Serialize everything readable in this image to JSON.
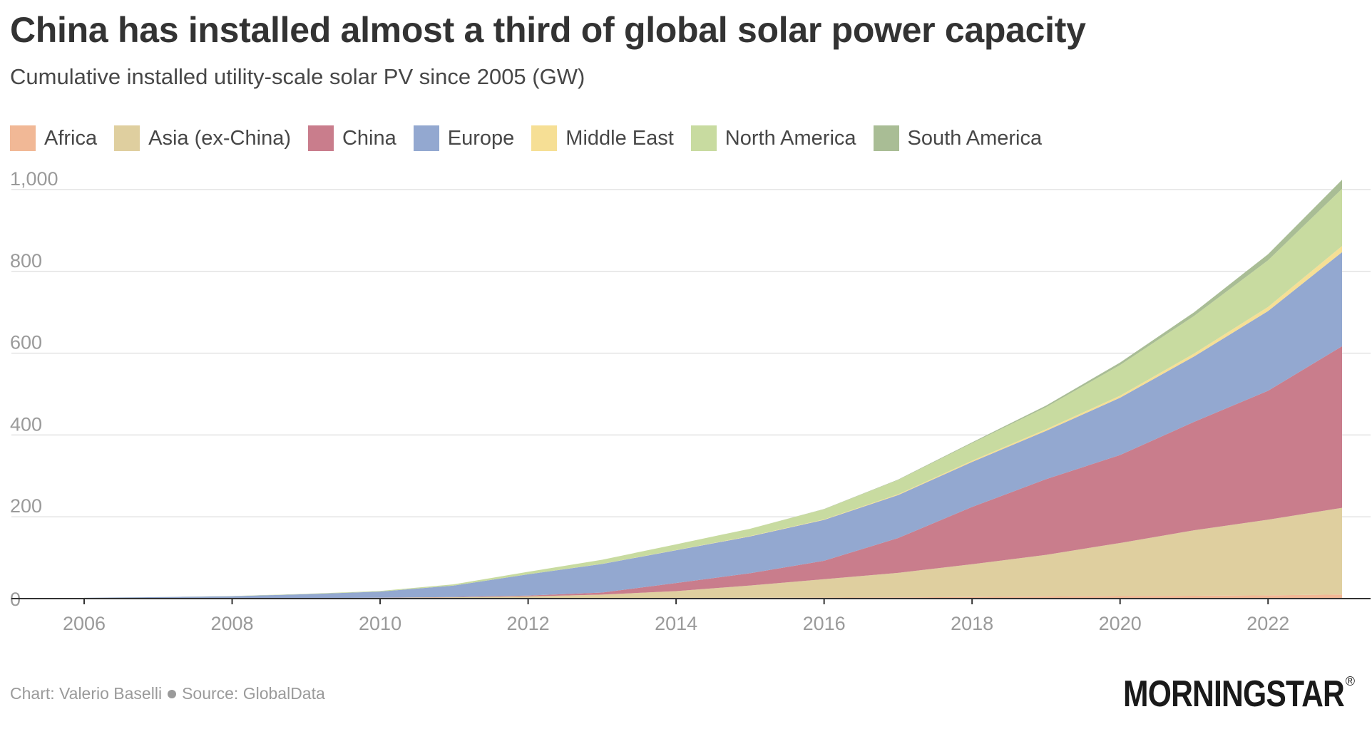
{
  "header": {
    "title": "China has installed almost a third of global solar power capacity",
    "subtitle": "Cumulative installed utility-scale solar PV since 2005 (GW)"
  },
  "footer": {
    "credit": "Chart: Valerio Baselli",
    "source": "Source: GlobalData",
    "logo_text": "MORNINGSTAR",
    "logo_mark": "®"
  },
  "legend": [
    {
      "label": "Africa",
      "color": "#f1b896"
    },
    {
      "label": "Asia (ex-China)",
      "color": "#dfcf9f"
    },
    {
      "label": "China",
      "color": "#c97d8c"
    },
    {
      "label": "Europe",
      "color": "#93a8d0"
    },
    {
      "label": "Middle East",
      "color": "#f6df95"
    },
    {
      "label": "North America",
      "color": "#c8dba0"
    },
    {
      "label": "South America",
      "color": "#a9bd95"
    }
  ],
  "chart_data": {
    "type": "area",
    "stacked": true,
    "title": "China has installed almost a third of global solar power capacity",
    "subtitle": "Cumulative installed utility-scale solar PV since 2005 (GW)",
    "x": [
      2006,
      2007,
      2008,
      2009,
      2010,
      2011,
      2012,
      2013,
      2014,
      2015,
      2016,
      2017,
      2018,
      2019,
      2020,
      2021,
      2022,
      2023
    ],
    "x_ticks": [
      2006,
      2008,
      2010,
      2012,
      2014,
      2016,
      2018,
      2020,
      2022
    ],
    "y_ticks": [
      0,
      200,
      400,
      600,
      800,
      1000
    ],
    "y_tick_labels": [
      "0",
      "200",
      "400",
      "600",
      "800",
      "1,000"
    ],
    "xlim": [
      2006,
      2023
    ],
    "ylim": [
      0,
      1000
    ],
    "grid": true,
    "legend_position": "top",
    "series": [
      {
        "name": "Africa",
        "color": "#f1b896",
        "values": [
          0,
          0,
          0,
          0,
          0,
          0.2,
          0.5,
          0.8,
          1.2,
          2,
          2.5,
          3,
          4,
          5,
          6,
          7,
          8,
          10
        ]
      },
      {
        "name": "Asia (ex-China)",
        "color": "#dfcf9f",
        "values": [
          0.5,
          0.6,
          0.8,
          1,
          2,
          3,
          5,
          9,
          17,
          30,
          45,
          60,
          80,
          102,
          130,
          160,
          185,
          212
        ]
      },
      {
        "name": "China",
        "color": "#c97d8c",
        "values": [
          0,
          0,
          0,
          0,
          0.2,
          0.8,
          2,
          5,
          20,
          30,
          45,
          85,
          140,
          185,
          215,
          265,
          315,
          395
        ]
      },
      {
        "name": "Europe",
        "color": "#93a8d0",
        "values": [
          1.5,
          3,
          5,
          10,
          15,
          28,
          52,
          70,
          80,
          90,
          100,
          105,
          110,
          118,
          140,
          160,
          195,
          230
        ]
      },
      {
        "name": "Middle East",
        "color": "#f6df95",
        "values": [
          0,
          0,
          0,
          0,
          0,
          0,
          0,
          0.2,
          0.5,
          0.8,
          1,
          2,
          3,
          4,
          5,
          7,
          10,
          15
        ]
      },
      {
        "name": "North America",
        "color": "#c8dba0",
        "values": [
          0.1,
          0.3,
          0.5,
          0.8,
          1.5,
          3,
          6,
          10,
          14,
          18,
          25,
          35,
          43,
          54,
          75,
          92,
          114,
          140
        ]
      },
      {
        "name": "South America",
        "color": "#a9bd95",
        "values": [
          0,
          0,
          0,
          0,
          0,
          0,
          0,
          0,
          0,
          0,
          0.5,
          1,
          2,
          4,
          6,
          9,
          15,
          22
        ]
      }
    ]
  }
}
